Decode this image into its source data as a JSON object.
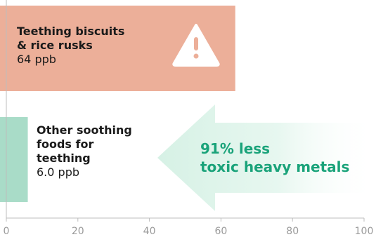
{
  "chart_data": {
    "type": "bar",
    "orientation": "horizontal",
    "categories": [
      "Teething biscuits\n& rice rusks",
      "Other soothing foods for teething"
    ],
    "category_lines": [
      [
        "Teething biscuits",
        "& rice rusks"
      ],
      [
        "Other soothing",
        "foods for",
        "teething"
      ]
    ],
    "values": [
      64,
      6.0
    ],
    "value_labels": [
      "64 ppb",
      "6.0 ppb"
    ],
    "unit": "ppb",
    "bar_colors": [
      "#ecaf99",
      "#a9dcc8"
    ],
    "xlim": [
      0,
      100
    ],
    "x_ticks": [
      0,
      20,
      40,
      60,
      80,
      100
    ],
    "x_tick_labels": [
      "0",
      "20",
      "40",
      "60",
      "80",
      "100"
    ],
    "grid": false,
    "callout": {
      "lines": [
        "91% less",
        "toxic heavy metals"
      ],
      "color": "#1aa37a",
      "arrow_color": "#d6f1e5",
      "arrow_direction": "left"
    },
    "warning_icon": "warning-triangle-icon"
  }
}
